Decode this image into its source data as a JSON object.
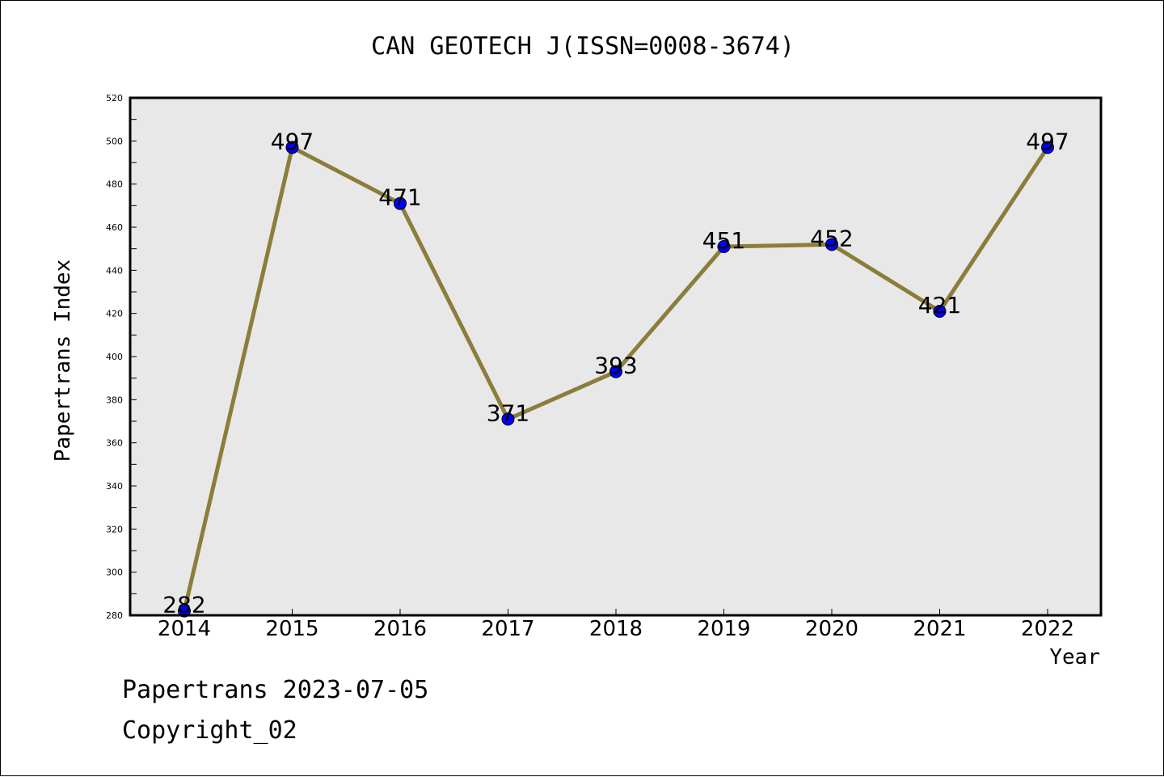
{
  "chart_data": {
    "type": "line",
    "title": "CAN GEOTECH J(ISSN=0008-3674)",
    "xlabel": "Year",
    "ylabel": "Papertrans Index",
    "categories": [
      "2014",
      "2015",
      "2016",
      "2017",
      "2018",
      "2019",
      "2020",
      "2021",
      "2022"
    ],
    "values": [
      282,
      497,
      471,
      371,
      393,
      451,
      452,
      421,
      497
    ],
    "data_labels": [
      "282",
      "497",
      "471",
      "371",
      "393",
      "451",
      "452",
      "421",
      "497"
    ],
    "ylim": [
      280,
      520
    ],
    "yticks": [
      "280",
      "300",
      "320",
      "340",
      "360",
      "380",
      "400",
      "420",
      "440",
      "460",
      "480",
      "500",
      "520"
    ],
    "grid": false,
    "legend": "none",
    "colors": {
      "line": "#8b7d3a",
      "marker": "#0000ff",
      "plot_background": "#e8e8e8"
    }
  },
  "footer": {
    "line1": "Papertrans 2023-07-05",
    "line2": "Copyright_02"
  }
}
